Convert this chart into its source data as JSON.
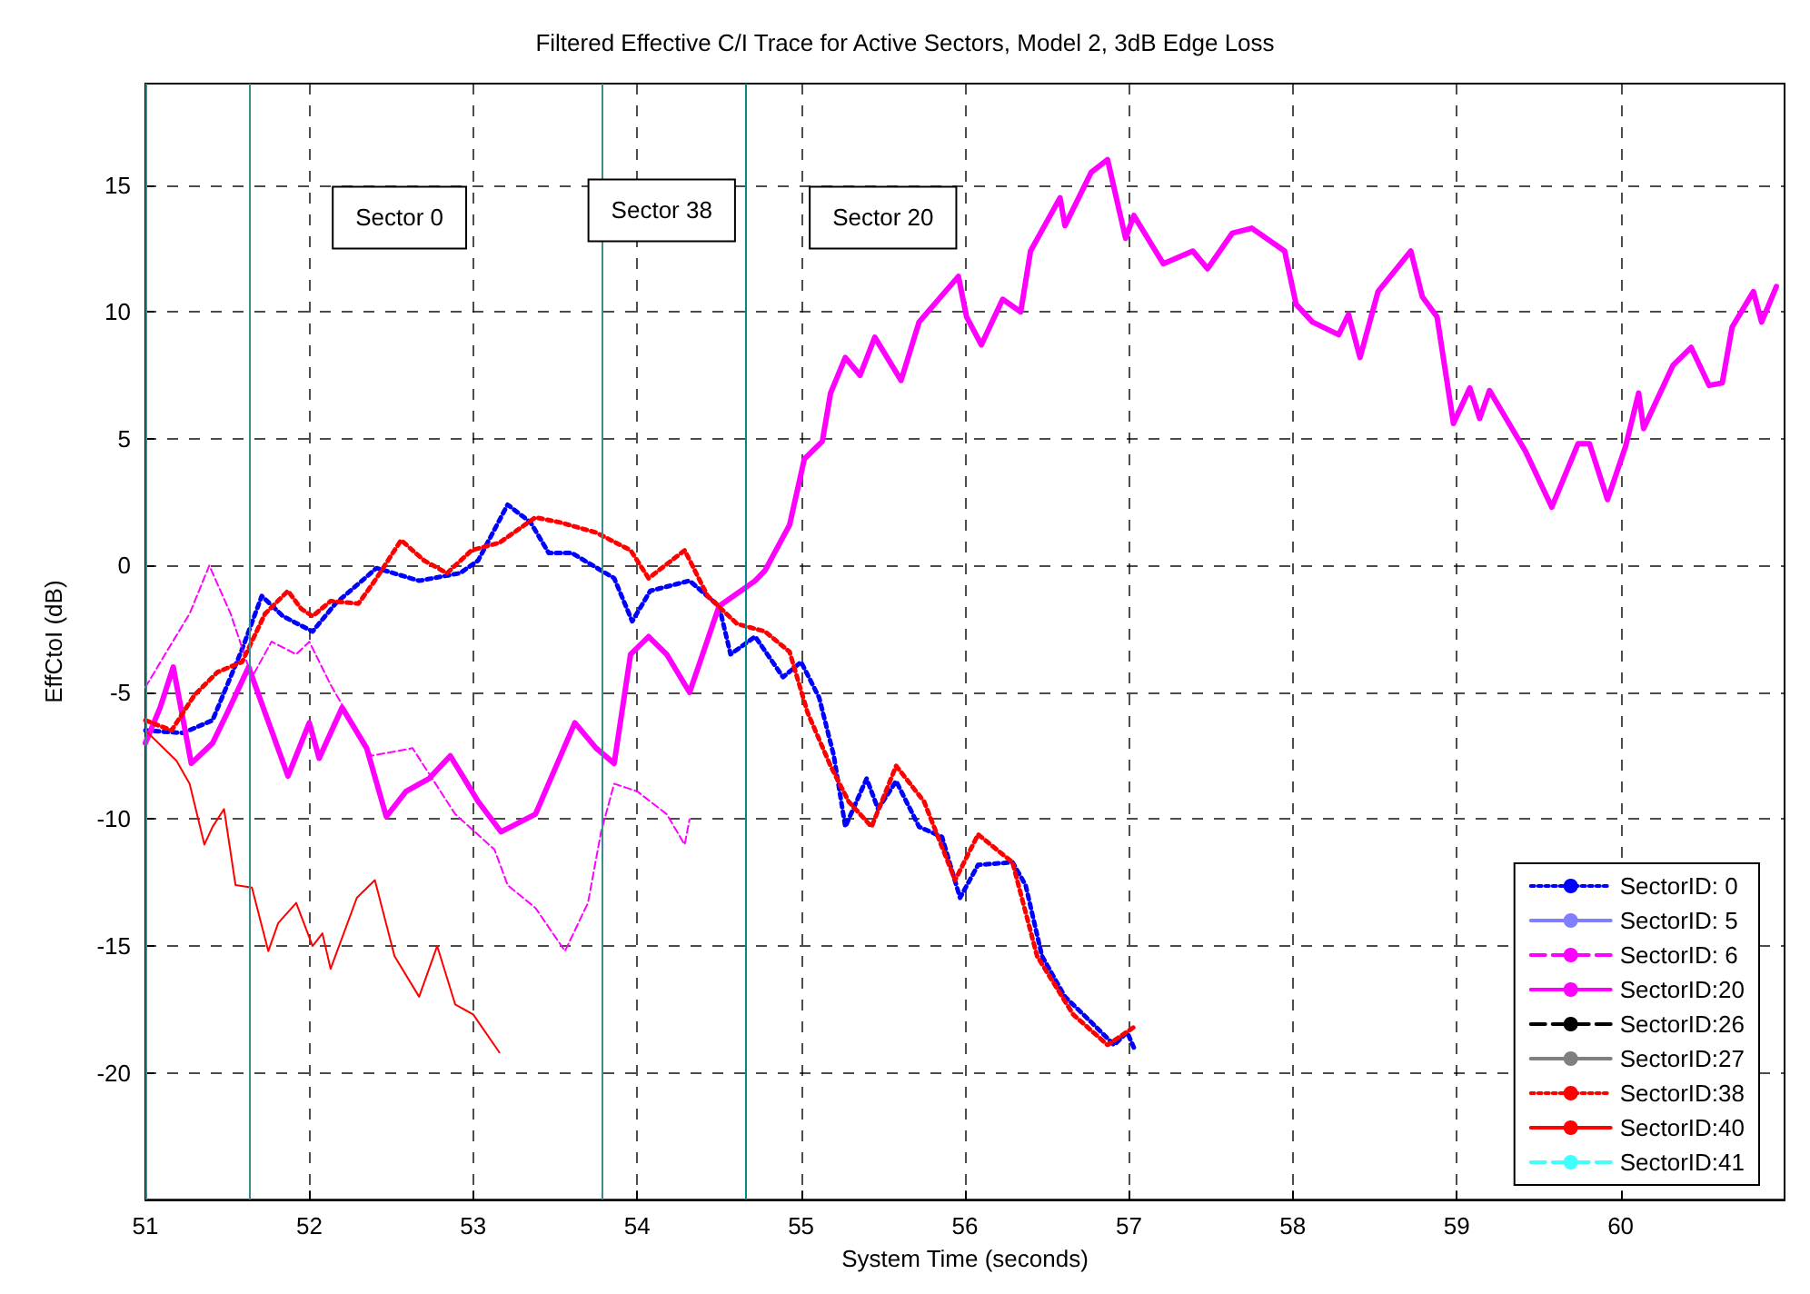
{
  "chart_data": {
    "type": "line",
    "title": "Filtered Effective C/I Trace for Active Sectors, Model 2, 3dB Edge Loss",
    "xlabel": "System Time (seconds)",
    "ylabel": "EffCtoI (dB)",
    "xlim": [
      51,
      61
    ],
    "xticks": [
      51,
      52,
      53,
      54,
      55,
      56,
      57,
      58,
      59,
      60
    ],
    "ylim": [
      -25,
      19
    ],
    "yticks": [
      -20,
      -15,
      -10,
      -5,
      0,
      5,
      10,
      15
    ],
    "grid": true,
    "legend": "bottom right",
    "marker": "none",
    "series": [
      {
        "name": "SectorID: 0",
        "color": "#0000ff",
        "line_style": "dotted",
        "x": [
          51.0,
          51.23,
          51.41,
          51.59,
          51.71,
          51.84,
          52.02,
          52.16,
          52.41,
          52.67,
          52.92,
          53.03,
          53.21,
          53.35,
          53.46,
          53.6,
          53.86,
          53.97,
          54.08,
          54.32,
          54.5,
          54.57,
          54.72,
          54.89,
          55.0,
          55.11,
          55.2,
          55.27,
          55.4,
          55.47,
          55.58,
          55.72,
          55.86,
          55.97,
          56.08,
          56.29,
          56.37,
          56.47,
          56.61,
          56.77,
          56.91,
          56.99,
          57.03
        ],
        "values": [
          -6.5,
          -6.6,
          -6.1,
          -3.3,
          -1.2,
          -2.0,
          -2.6,
          -1.5,
          -0.1,
          -0.6,
          -0.3,
          0.2,
          2.4,
          1.7,
          0.5,
          0.5,
          -0.5,
          -2.2,
          -1.0,
          -0.6,
          -1.6,
          -3.5,
          -2.8,
          -4.4,
          -3.8,
          -5.2,
          -7.5,
          -10.3,
          -8.4,
          -9.6,
          -8.5,
          -10.3,
          -10.7,
          -13.1,
          -11.8,
          -11.7,
          -12.6,
          -15.4,
          -17.0,
          -18.0,
          -18.9,
          -18.4,
          -19.0
        ]
      },
      {
        "name": "SectorID: 5",
        "color": "#8080ff",
        "line_style": "solid"
      },
      {
        "name": "SectorID: 6",
        "color": "#ff00ff",
        "line_style": "dashed",
        "x": [
          51.0,
          51.12,
          51.27,
          51.39,
          51.52,
          51.65,
          51.77,
          51.92,
          52.0,
          52.13,
          52.38,
          52.63,
          52.89,
          53.13,
          53.21,
          53.38,
          53.56,
          53.7,
          53.78,
          53.86,
          54.0,
          54.18,
          54.29,
          54.32
        ],
        "values": [
          -4.8,
          -3.5,
          -1.9,
          0.0,
          -1.9,
          -4.4,
          -3.0,
          -3.5,
          -3.0,
          -4.7,
          -7.5,
          -7.2,
          -9.8,
          -11.2,
          -12.6,
          -13.5,
          -15.2,
          -13.3,
          -10.5,
          -8.6,
          -8.9,
          -9.8,
          -11.0,
          -10.0
        ]
      },
      {
        "name": "SectorID:20",
        "color": "#ff00ff",
        "line_style": "solid",
        "x": [
          51.0,
          51.09,
          51.17,
          51.28,
          51.41,
          51.5,
          51.63,
          51.73,
          51.87,
          52.0,
          52.06,
          52.2,
          52.35,
          52.47,
          52.59,
          52.73,
          52.86,
          53.03,
          53.17,
          53.38,
          53.62,
          53.75,
          53.86,
          53.96,
          54.07,
          54.18,
          54.32,
          54.5,
          54.72,
          54.78,
          54.93,
          55.02,
          55.13,
          55.18,
          55.27,
          55.36,
          55.45,
          55.61,
          55.72,
          55.96,
          56.01,
          56.1,
          56.23,
          56.34,
          56.4,
          56.58,
          56.61,
          56.77,
          56.87,
          56.98,
          57.03,
          57.21,
          57.39,
          57.48,
          57.63,
          57.75,
          57.95,
          58.02,
          58.12,
          58.28,
          58.34,
          58.41,
          58.52,
          58.72,
          58.79,
          58.88,
          58.98,
          59.08,
          59.14,
          59.2,
          59.42,
          59.58,
          59.74,
          59.81,
          59.92,
          60.03,
          60.11,
          60.14,
          60.32,
          60.43,
          60.54,
          60.62,
          60.68,
          60.81,
          60.86,
          60.95
        ],
        "values": [
          -7.0,
          -5.6,
          -4.0,
          -7.8,
          -7.0,
          -5.8,
          -4.0,
          -5.8,
          -8.3,
          -6.2,
          -7.6,
          -5.6,
          -7.2,
          -9.9,
          -8.9,
          -8.4,
          -7.5,
          -9.3,
          -10.5,
          -9.8,
          -6.2,
          -7.2,
          -7.8,
          -3.5,
          -2.8,
          -3.5,
          -5.0,
          -1.6,
          -0.6,
          -0.2,
          1.6,
          4.2,
          4.9,
          6.8,
          8.2,
          7.5,
          9.0,
          7.3,
          9.6,
          11.4,
          9.8,
          8.7,
          10.5,
          10.0,
          12.4,
          14.5,
          13.4,
          15.5,
          16.0,
          12.9,
          13.8,
          11.9,
          12.4,
          11.7,
          13.1,
          13.3,
          12.4,
          10.3,
          9.6,
          9.1,
          9.9,
          8.2,
          10.8,
          12.4,
          10.6,
          9.8,
          5.6,
          7.0,
          5.8,
          6.9,
          4.5,
          2.3,
          4.8,
          4.8,
          2.6,
          4.7,
          6.8,
          5.4,
          7.9,
          8.6,
          7.1,
          7.2,
          9.4,
          10.8,
          9.6,
          11.0
        ]
      },
      {
        "name": "SectorID:26",
        "color": "#000000",
        "line_style": "dashed"
      },
      {
        "name": "SectorID:27",
        "color": "#808080",
        "line_style": "solid"
      },
      {
        "name": "SectorID:38",
        "color": "#ff0000",
        "line_style": "dotted",
        "x": [
          51.0,
          51.16,
          51.3,
          51.44,
          51.59,
          51.73,
          51.87,
          51.95,
          52.02,
          52.13,
          52.3,
          52.41,
          52.56,
          52.7,
          52.84,
          52.99,
          53.16,
          53.38,
          53.53,
          53.75,
          53.96,
          54.07,
          54.29,
          54.43,
          54.61,
          54.78,
          54.93,
          55.04,
          55.18,
          55.29,
          55.43,
          55.58,
          55.75,
          55.94,
          56.08,
          56.29,
          56.44,
          56.66,
          56.87,
          57.03
        ],
        "values": [
          -6.1,
          -6.5,
          -5.1,
          -4.2,
          -3.8,
          -1.9,
          -1.0,
          -1.7,
          -2.0,
          -1.4,
          -1.5,
          -0.5,
          1.0,
          0.2,
          -0.3,
          0.6,
          0.9,
          1.9,
          1.7,
          1.3,
          0.6,
          -0.5,
          0.6,
          -1.2,
          -2.3,
          -2.6,
          -3.4,
          -5.8,
          -7.9,
          -9.3,
          -10.3,
          -7.9,
          -9.3,
          -12.4,
          -10.6,
          -11.7,
          -15.4,
          -17.7,
          -18.9,
          -18.2
        ]
      },
      {
        "name": "SectorID:40",
        "color": "#ff0000",
        "line_style": "solid",
        "x": [
          51.0,
          51.19,
          51.27,
          51.36,
          51.41,
          51.48,
          51.55,
          51.65,
          51.75,
          51.81,
          51.92,
          52.02,
          52.08,
          52.13,
          52.29,
          52.4,
          52.52,
          52.67,
          52.78,
          52.89,
          53.0,
          53.16
        ],
        "values": [
          -6.5,
          -7.7,
          -8.6,
          -11.0,
          -10.3,
          -9.6,
          -12.6,
          -12.7,
          -15.2,
          -14.1,
          -13.3,
          -15.0,
          -14.5,
          -15.9,
          -13.1,
          -12.4,
          -15.4,
          -17.0,
          -15.0,
          -17.3,
          -17.7,
          -19.2
        ]
      },
      {
        "name": "SectorID:41",
        "color": "#40ffff",
        "line_style": "dashed"
      }
    ],
    "ref_lines": [
      {
        "axis": "x",
        "value": 51.0,
        "color": "#3c8c8c"
      },
      {
        "axis": "x",
        "value": 51.63,
        "color": "#3c8c8c"
      },
      {
        "axis": "x",
        "value": 53.78,
        "color": "#3c8c8c"
      },
      {
        "axis": "x",
        "value": 54.66,
        "color": "#008b8b"
      }
    ],
    "annotations": [
      "Sector 0",
      "Sector 38",
      "Sector 20"
    ]
  }
}
